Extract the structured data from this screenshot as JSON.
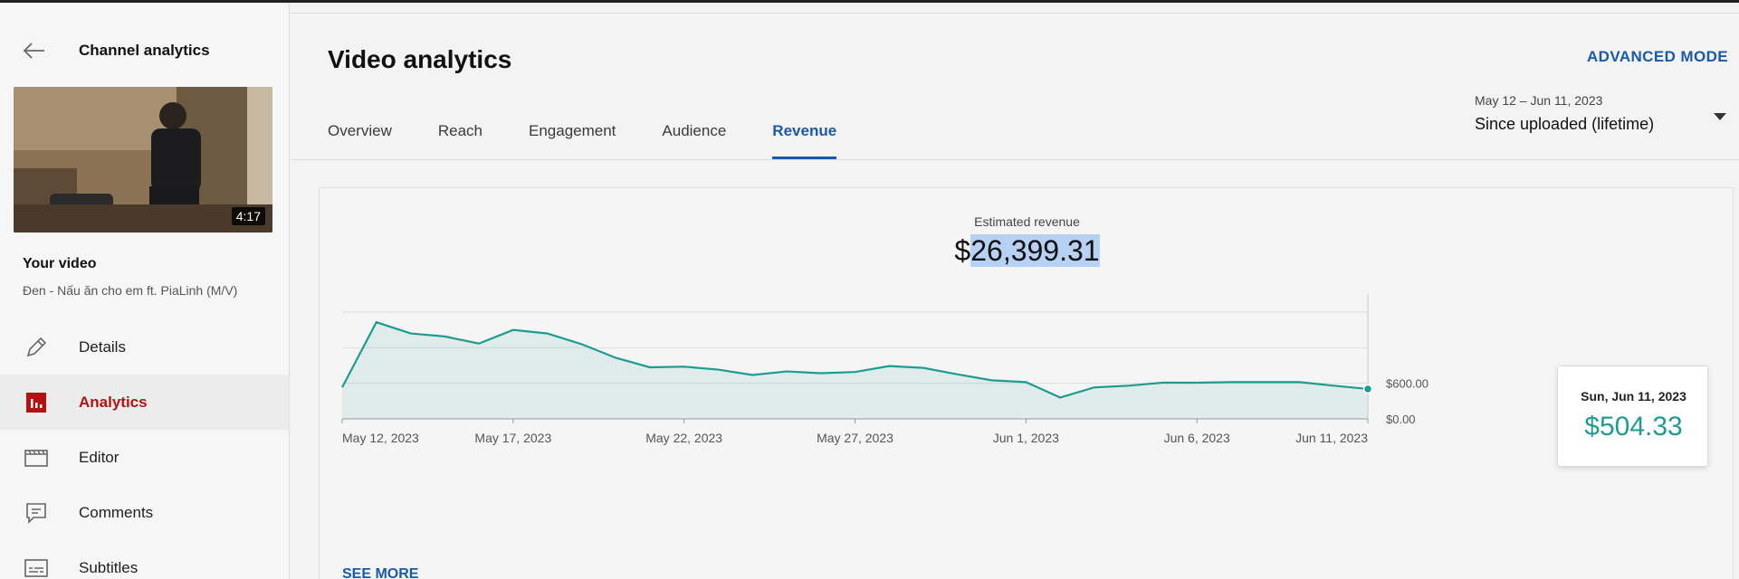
{
  "sidebar": {
    "back_title": "Channel analytics",
    "thumbnail_duration": "4:17",
    "your_video_label": "Your video",
    "video_title": "Đen - Nấu ăn cho em ft. PiaLinh (M/V)",
    "items": [
      {
        "label": "Details",
        "icon": "pencil-icon"
      },
      {
        "label": "Analytics",
        "icon": "analytics-icon",
        "active": true
      },
      {
        "label": "Editor",
        "icon": "editor-icon"
      },
      {
        "label": "Comments",
        "icon": "comments-icon"
      },
      {
        "label": "Subtitles",
        "icon": "subtitles-icon"
      }
    ]
  },
  "header": {
    "title": "Video analytics",
    "advanced_mode": "ADVANCED MODE",
    "tabs": [
      {
        "label": "Overview"
      },
      {
        "label": "Reach"
      },
      {
        "label": "Engagement"
      },
      {
        "label": "Audience"
      },
      {
        "label": "Revenue",
        "active": true
      }
    ],
    "date_range": {
      "dates": "May 12 – Jun 11, 2023",
      "label": "Since uploaded (lifetime)"
    }
  },
  "metric": {
    "label": "Estimated revenue",
    "currency": "$",
    "value": "26,399.31"
  },
  "tooltip": {
    "date": "Sun, Jun 11, 2023",
    "value": "$504.33"
  },
  "see_more": "SEE MORE",
  "colors": {
    "accent": "#1a5aa8",
    "active_nav": "#b31212",
    "series": "#1f9c8f",
    "selection": "#b7d1f4"
  },
  "chart_data": {
    "type": "area",
    "x": [
      "May 12, 2023",
      "May 13, 2023",
      "May 14, 2023",
      "May 15, 2023",
      "May 16, 2023",
      "May 17, 2023",
      "May 18, 2023",
      "May 19, 2023",
      "May 20, 2023",
      "May 21, 2023",
      "May 22, 2023",
      "May 23, 2023",
      "May 24, 2023",
      "May 25, 2023",
      "May 26, 2023",
      "May 27, 2023",
      "May 28, 2023",
      "May 29, 2023",
      "May 30, 2023",
      "May 31, 2023",
      "Jun 1, 2023",
      "Jun 2, 2023",
      "Jun 3, 2023",
      "Jun 4, 2023",
      "Jun 5, 2023",
      "Jun 6, 2023",
      "Jun 7, 2023",
      "Jun 8, 2023",
      "Jun 9, 2023",
      "Jun 10, 2023",
      "Jun 11, 2023"
    ],
    "x_tick_labels": [
      "May 12, 2023",
      "May 17, 2023",
      "May 22, 2023",
      "May 27, 2023",
      "Jun 1, 2023",
      "Jun 6, 2023",
      "Jun 11, 2023"
    ],
    "series": [
      {
        "values": [
          530,
          1630,
          1440,
          1390,
          1270,
          1500,
          1440,
          1260,
          1030,
          870,
          880,
          830,
          740,
          800,
          770,
          790,
          890,
          860,
          750,
          650,
          620,
          360,
          530,
          560,
          610,
          610,
          620,
          620,
          620,
          560,
          504.33
        ]
      }
    ],
    "y_tick_labels": [
      "$0.00",
      "$600.00",
      "",
      ""
    ],
    "ylim": [
      0,
      1800
    ],
    "grid": true
  }
}
